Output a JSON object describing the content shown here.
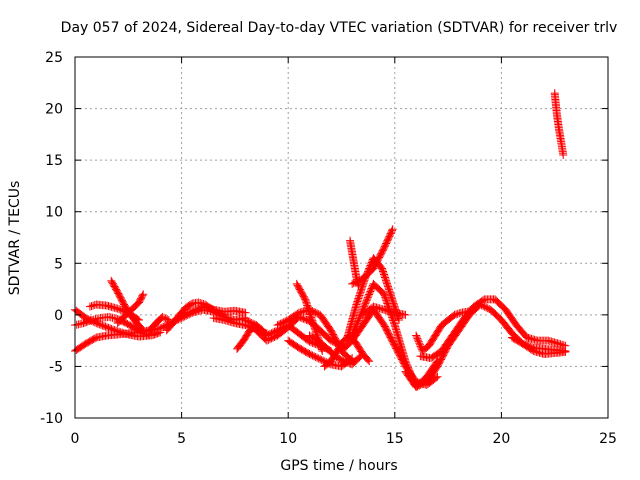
{
  "chart_data": {
    "type": "scatter",
    "title": "Day 057 of 2024, Sidereal Day-to-day VTEC variation (SDTVAR) for receiver trlv",
    "xlabel": "GPS time / hours",
    "ylabel": "SDTVAR / TECUs",
    "xlim": [
      0,
      25
    ],
    "ylim": [
      -10,
      25
    ],
    "xticks": [
      0,
      5,
      10,
      15,
      20,
      25
    ],
    "yticks": [
      -10,
      -5,
      0,
      5,
      10,
      15,
      20,
      25
    ],
    "xtick_labels": [
      "0",
      "5",
      "10",
      "15",
      "20",
      "25"
    ],
    "ytick_labels": [
      "-10",
      "-5",
      "0",
      "5",
      "10",
      "15",
      "20",
      "25"
    ],
    "grid": true,
    "marker": "+",
    "color": "#ff0000",
    "series": [
      {
        "name": "t1",
        "x": [
          0.0,
          0.5,
          1.0,
          1.5,
          2.0,
          2.5,
          3.0,
          3.5,
          4.0,
          4.5,
          5.0,
          5.5,
          6.0,
          6.5,
          7.0,
          7.5,
          8.0
        ],
        "y": [
          -3.5,
          -2.8,
          -2.2,
          -2.0,
          -1.9,
          -1.8,
          -1.7,
          -1.5,
          -1.3,
          -0.8,
          -0.3,
          0.2,
          0.5,
          0.3,
          -0.2,
          -0.5,
          -0.3
        ]
      },
      {
        "name": "t2",
        "x": [
          0.0,
          0.4,
          0.8,
          1.2,
          1.6,
          2.0,
          2.4,
          2.8,
          3.2,
          3.6,
          4.0
        ],
        "y": [
          -1.0,
          -0.8,
          -0.5,
          -0.3,
          -0.2,
          -0.4,
          -0.8,
          -1.3,
          -1.8,
          -2.0,
          -1.7
        ]
      },
      {
        "name": "t3",
        "x": [
          0.0,
          0.5,
          1.0,
          1.5,
          2.0,
          2.5,
          3.0,
          3.5
        ],
        "y": [
          0.5,
          -0.3,
          -0.8,
          -1.2,
          -1.6,
          -1.9,
          -2.1,
          -2.0
        ]
      },
      {
        "name": "t4",
        "x": [
          0.7,
          1.0,
          1.5,
          2.0,
          2.5,
          3.0
        ],
        "y": [
          0.8,
          1.0,
          0.9,
          0.6,
          0.2,
          -0.5
        ]
      },
      {
        "name": "t5",
        "x": [
          1.7,
          2.0,
          2.3,
          2.6,
          2.9,
          3.2
        ],
        "y": [
          3.3,
          2.2,
          1.0,
          0.0,
          -0.8,
          -1.5
        ]
      },
      {
        "name": "t6",
        "x": [
          2.0,
          2.5,
          3.0,
          3.2
        ],
        "y": [
          -0.8,
          0.2,
          1.2,
          2.0
        ]
      },
      {
        "name": "t7",
        "x": [
          3.5,
          3.8,
          4.1,
          4.4
        ],
        "y": [
          -1.5,
          -0.8,
          -0.2,
          -0.5
        ]
      },
      {
        "name": "t8",
        "x": [
          4.3,
          4.6,
          4.9,
          5.2,
          5.5,
          5.8,
          6.1,
          6.4,
          6.7,
          7.0
        ],
        "y": [
          -1.5,
          -0.8,
          0.0,
          0.7,
          1.1,
          1.2,
          1.0,
          0.6,
          0.2,
          0.0
        ]
      },
      {
        "name": "t9",
        "x": [
          5.0,
          5.5,
          6.0,
          6.5,
          7.0,
          7.5,
          8.0
        ],
        "y": [
          0.0,
          0.3,
          0.8,
          0.5,
          0.3,
          0.4,
          0.2
        ]
      },
      {
        "name": "t10",
        "x": [
          6.5,
          7.0,
          7.5,
          8.0,
          8.5,
          9.0
        ],
        "y": [
          -0.3,
          -0.5,
          -0.8,
          -1.0,
          -1.4,
          -1.8
        ]
      },
      {
        "name": "t11",
        "x": [
          7.6,
          7.9,
          8.2,
          8.5,
          8.8
        ],
        "y": [
          -3.3,
          -2.5,
          -1.5,
          -1.0,
          -1.5
        ]
      },
      {
        "name": "t12",
        "x": [
          8.0,
          8.5,
          9.0,
          9.5,
          10.0,
          10.5,
          11.0,
          11.5,
          12.0
        ],
        "y": [
          -0.5,
          -1.0,
          -2.0,
          -1.5,
          -1.0,
          -1.8,
          -2.6,
          -3.0,
          -3.5
        ]
      },
      {
        "name": "t13",
        "x": [
          8.5,
          9.0,
          9.5,
          10.0,
          10.5,
          11.0,
          11.5,
          12.0,
          12.5
        ],
        "y": [
          -1.5,
          -2.5,
          -2.0,
          -1.2,
          -0.2,
          -0.6,
          -1.5,
          -2.5,
          -3.0
        ]
      },
      {
        "name": "t14",
        "x": [
          9.5,
          10.0,
          10.5,
          11.0,
          11.5,
          12.0,
          12.5,
          13.0
        ],
        "y": [
          -1.0,
          -0.5,
          0.2,
          0.5,
          0.0,
          -1.5,
          -3.5,
          -4.5
        ]
      },
      {
        "name": "t15",
        "x": [
          10.0,
          10.5,
          11.0,
          11.5,
          12.0,
          12.5,
          13.0
        ],
        "y": [
          -2.5,
          -3.2,
          -3.8,
          -4.3,
          -4.8,
          -5.0,
          -4.2
        ]
      },
      {
        "name": "t16",
        "x": [
          10.4,
          10.8,
          11.2,
          11.6
        ],
        "y": [
          3.0,
          1.5,
          -1.0,
          -3.5
        ]
      },
      {
        "name": "t17",
        "x": [
          11.0,
          11.4,
          11.8,
          12.2,
          12.6,
          13.0,
          13.4
        ],
        "y": [
          -2.0,
          -2.5,
          -3.2,
          -4.0,
          -4.5,
          -4.8,
          -4.0
        ]
      },
      {
        "name": "t18",
        "x": [
          11.7,
          12.0,
          12.3,
          12.6,
          12.9,
          13.2,
          13.5,
          13.8
        ],
        "y": [
          -5.0,
          -4.5,
          -3.5,
          -2.5,
          -2.0,
          -2.8,
          -3.8,
          -4.5
        ]
      },
      {
        "name": "t19",
        "x": [
          12.5,
          13.0,
          13.5,
          14.0,
          14.5,
          15.0,
          15.5,
          16.0,
          16.5,
          17.0
        ],
        "y": [
          -3.5,
          -2.5,
          -1.0,
          0.5,
          -1.0,
          -3.0,
          -5.0,
          -6.5,
          -6.8,
          -6.0
        ]
      },
      {
        "name": "t20",
        "x": [
          13.0,
          13.5,
          14.0,
          14.5,
          15.0,
          15.5,
          16.0,
          16.5,
          17.0
        ],
        "y": [
          -2.0,
          0.5,
          3.0,
          2.0,
          -1.0,
          -4.5,
          -7.0,
          -6.0,
          -4.5
        ]
      },
      {
        "name": "t21",
        "x": [
          12.8,
          13.2,
          13.6,
          14.0,
          14.4,
          14.8,
          15.2
        ],
        "y": [
          -2.0,
          1.0,
          3.5,
          5.5,
          4.5,
          2.0,
          -0.5
        ]
      },
      {
        "name": "t22",
        "x": [
          13.0,
          13.5,
          14.0,
          14.5,
          14.9
        ],
        "y": [
          3.0,
          3.5,
          4.5,
          6.5,
          8.3
        ]
      },
      {
        "name": "t23",
        "x": [
          12.9,
          13.0,
          13.1,
          13.2,
          13.3
        ],
        "y": [
          7.2,
          6.0,
          4.8,
          3.6,
          2.8
        ]
      },
      {
        "name": "t24",
        "x": [
          13.5,
          14.0,
          14.5,
          15.0,
          15.5
        ],
        "y": [
          0.0,
          0.8,
          0.5,
          0.2,
          0.0
        ]
      },
      {
        "name": "t25",
        "x": [
          15.5,
          16.0,
          16.5,
          17.0,
          17.5,
          18.0,
          18.5,
          19.0,
          19.5,
          20.0,
          20.5,
          21.0,
          21.5,
          22.0,
          22.5,
          23.0
        ],
        "y": [
          -5.5,
          -7.0,
          -6.5,
          -5.0,
          -3.0,
          -1.5,
          0.0,
          1.0,
          0.5,
          -0.5,
          -1.8,
          -2.8,
          -3.2,
          -3.3,
          -3.4,
          -3.5
        ]
      },
      {
        "name": "t26",
        "x": [
          16.2,
          16.7,
          17.2,
          17.7,
          18.2,
          18.7,
          19.2,
          19.7,
          20.2,
          20.7,
          21.2,
          21.7,
          22.2,
          22.7,
          23.0
        ],
        "y": [
          -4.0,
          -4.2,
          -3.5,
          -2.0,
          -0.5,
          0.8,
          1.5,
          1.5,
          0.5,
          -1.0,
          -2.2,
          -2.5,
          -2.5,
          -2.8,
          -3.0
        ]
      },
      {
        "name": "t27",
        "x": [
          16.0,
          16.3,
          16.6,
          16.9,
          17.2,
          17.5,
          17.8,
          18.1,
          18.4,
          18.7
        ],
        "y": [
          -2.0,
          -3.5,
          -3.0,
          -2.0,
          -1.0,
          -0.5,
          0.0,
          0.2,
          0.3,
          0.5
        ]
      },
      {
        "name": "t28",
        "x": [
          20.5,
          21.0,
          21.5,
          22.0,
          22.5,
          23.0
        ],
        "y": [
          -2.2,
          -2.8,
          -3.5,
          -3.8,
          -3.7,
          -3.6
        ]
      },
      {
        "name": "t29",
        "x": [
          22.5,
          22.6,
          22.7,
          22.8,
          22.9
        ],
        "y": [
          21.5,
          19.5,
          18.0,
          16.8,
          15.5
        ]
      }
    ]
  }
}
